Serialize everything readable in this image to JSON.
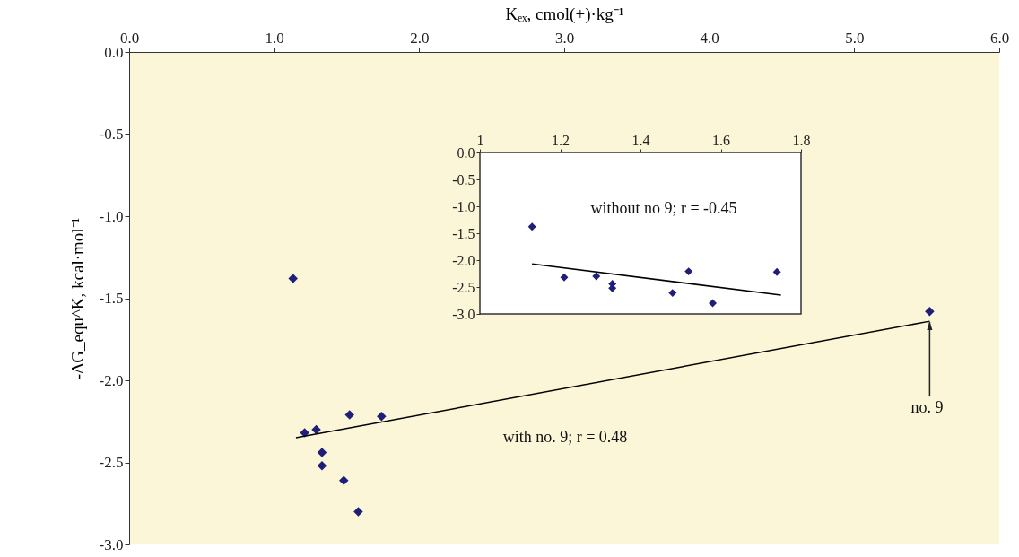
{
  "chart_data": [
    {
      "type": "scatter",
      "xlabel": "Kₑₓ, cmol(+)·kg⁻¹",
      "ylabel": "-ΔG_equ^K, kcal·mol⁻¹",
      "marker": "diamond",
      "xlim": [
        0,
        6
      ],
      "xticks": [
        {
          "value": 0,
          "label": "0.0"
        },
        {
          "value": 1,
          "label": "1.0"
        },
        {
          "value": 2,
          "label": "2.0"
        },
        {
          "value": 3,
          "label": "3.0"
        },
        {
          "value": 4,
          "label": "4.0"
        },
        {
          "value": 5,
          "label": "5.0"
        },
        {
          "value": 6,
          "label": "6.0"
        }
      ],
      "ylim": [
        -3,
        0
      ],
      "yticks": [
        {
          "value": 0,
          "label": "0.0"
        },
        -0.5,
        {
          "value": -1,
          "label": "-1.0"
        },
        -1.5,
        {
          "value": -2,
          "label": "-2.0"
        },
        -2.5,
        {
          "value": -3,
          "label": "-3.0"
        }
      ],
      "series": [
        {
          "color": "#1f1f7a",
          "x": [
            1.13,
            1.21,
            1.29,
            1.33,
            1.33,
            1.48,
            1.52,
            1.58,
            1.74,
            5.52
          ],
          "values": [
            -1.38,
            -2.32,
            -2.3,
            -2.44,
            -2.52,
            -2.61,
            -2.21,
            -2.8,
            -2.22,
            -1.58
          ]
        },
        {
          "type": "line",
          "marker": "none",
          "color": "#000000",
          "x": [
            1.15,
            5.52
          ],
          "values": [
            -2.35,
            -1.64
          ]
        }
      ],
      "annotations": [
        "with no. 9; r = 0.48",
        {
          "text": "no. 9",
          "x": 5.52,
          "y": -1.64
        }
      ]
    },
    {
      "type": "scatter",
      "marker": "diamond",
      "xlim": [
        1,
        1.8
      ],
      "xticks": [
        1,
        1.2,
        1.4,
        1.6,
        1.8
      ],
      "ylim": [
        -3,
        0
      ],
      "yticks": [
        {
          "value": 0,
          "label": "0.0"
        },
        -0.5,
        {
          "value": -1,
          "label": "-1.0"
        },
        -1.5,
        {
          "value": -2,
          "label": "-2.0"
        },
        -2.5,
        {
          "value": -3,
          "label": "-3.0"
        }
      ],
      "series": [
        {
          "color": "#1f1f7a",
          "x": [
            1.13,
            1.21,
            1.29,
            1.33,
            1.33,
            1.48,
            1.52,
            1.58,
            1.74
          ],
          "values": [
            -1.38,
            -2.32,
            -2.3,
            -2.44,
            -2.52,
            -2.61,
            -2.21,
            -2.8,
            -2.22
          ]
        },
        {
          "type": "line",
          "marker": "none",
          "color": "#000000",
          "x": [
            1.13,
            1.75
          ],
          "values": [
            -2.07,
            -2.65
          ]
        }
      ],
      "annotations": [
        "without no  9; r = -0.45"
      ]
    }
  ]
}
